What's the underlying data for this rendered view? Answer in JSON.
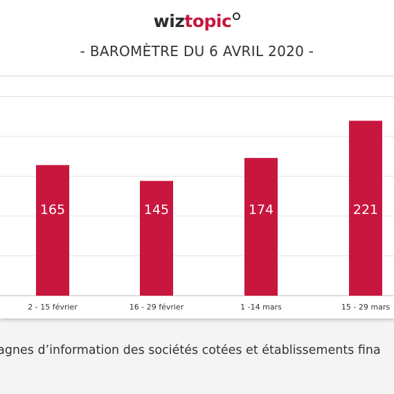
{
  "brand": {
    "part1": "wiz",
    "part2": "topic",
    "dark_color": "#2d2d2d",
    "accent_color": "#c8173f"
  },
  "subtitle": "- BAROMÈTRE DU 6 AVRIL 2020 -",
  "caption": "pagnes d’information des sociétés cotées et établissements fina",
  "chart_data": {
    "type": "bar",
    "categories": [
      "2 - 15 février",
      "16 - 29 février",
      "1 -14 mars",
      "15 - 29 mars"
    ],
    "values": [
      165,
      145,
      174,
      221
    ],
    "bar_color": "#c8173f",
    "gridlines": true,
    "data_labels": true,
    "title": "",
    "xlabel": "",
    "ylabel": ""
  }
}
